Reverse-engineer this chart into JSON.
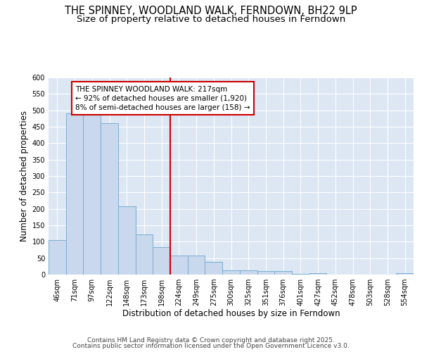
{
  "title": "THE SPINNEY, WOODLAND WALK, FERNDOWN, BH22 9LP",
  "subtitle": "Size of property relative to detached houses in Ferndown",
  "xlabel": "Distribution of detached houses by size in Ferndown",
  "ylabel": "Number of detached properties",
  "categories": [
    "46sqm",
    "71sqm",
    "97sqm",
    "122sqm",
    "148sqm",
    "173sqm",
    "198sqm",
    "224sqm",
    "249sqm",
    "275sqm",
    "300sqm",
    "325sqm",
    "351sqm",
    "376sqm",
    "401sqm",
    "427sqm",
    "452sqm",
    "478sqm",
    "503sqm",
    "528sqm",
    "554sqm"
  ],
  "values": [
    105,
    490,
    490,
    460,
    207,
    123,
    83,
    57,
    57,
    38,
    13,
    13,
    10,
    10,
    3,
    5,
    0,
    0,
    0,
    0,
    5
  ],
  "bar_color": "#c9d8ec",
  "bar_edge_color": "#7aadd4",
  "figure_bg": "#ffffff",
  "axes_bg": "#dce7f3",
  "grid_color": "#ffffff",
  "vline_x": 7,
  "vline_color": "#cc0000",
  "annotation_text": "THE SPINNEY WOODLAND WALK: 217sqm\n← 92% of detached houses are smaller (1,920)\n8% of semi-detached houses are larger (158) →",
  "annotation_box_color": "#ffffff",
  "annotation_box_edge": "#cc0000",
  "ylim": [
    0,
    600
  ],
  "yticks": [
    0,
    50,
    100,
    150,
    200,
    250,
    300,
    350,
    400,
    450,
    500,
    550,
    600
  ],
  "footer1": "Contains HM Land Registry data © Crown copyright and database right 2025.",
  "footer2": "Contains public sector information licensed under the Open Government Licence v3.0.",
  "title_fontsize": 10.5,
  "subtitle_fontsize": 9.5,
  "label_fontsize": 8.5,
  "tick_fontsize": 7,
  "annot_fontsize": 7.5,
  "footer_fontsize": 6.5
}
